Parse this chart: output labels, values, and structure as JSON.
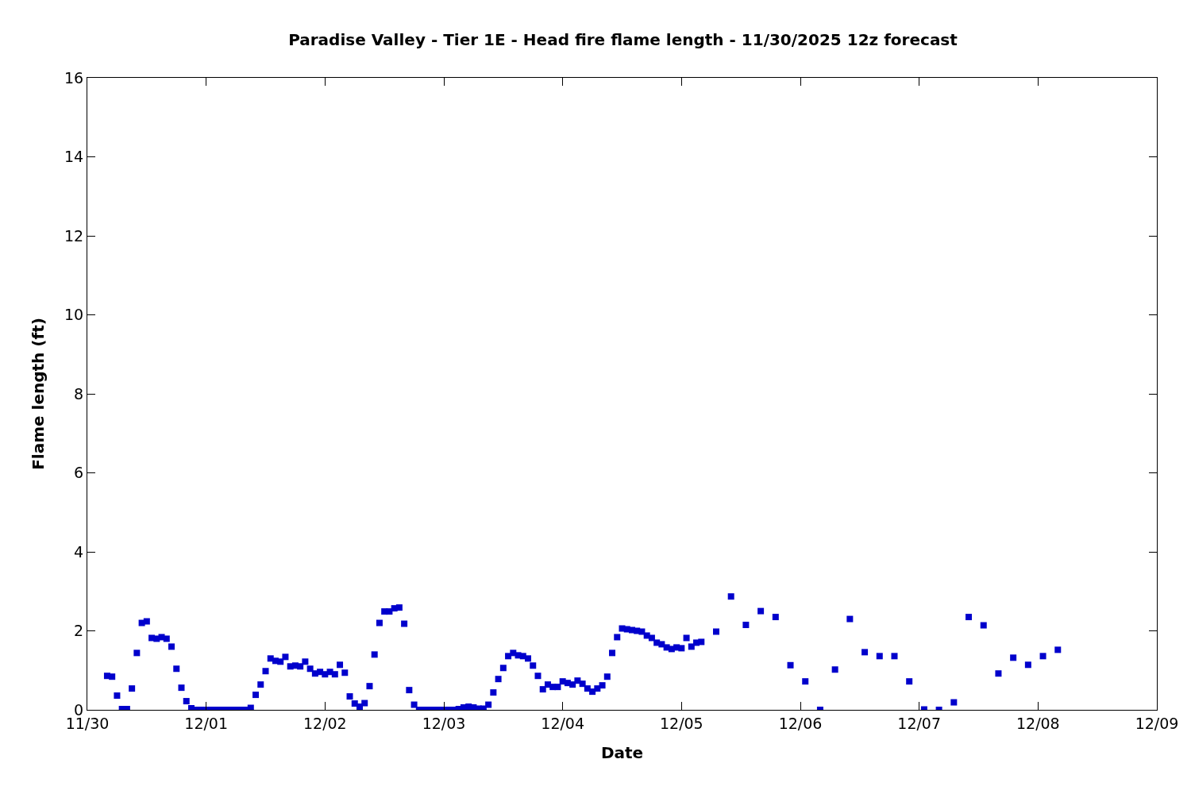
{
  "chart_data": {
    "type": "scatter",
    "title": "Paradise Valley - Tier 1E - Head fire flame length - 11/30/2025 12z forecast",
    "xlabel": "Date",
    "ylabel": "Flame length (ft)",
    "x": [
      "2025-11-30T04:00",
      "2025-11-30T05:00",
      "2025-11-30T06:00",
      "2025-11-30T07:00",
      "2025-11-30T08:00",
      "2025-11-30T09:00",
      "2025-11-30T10:00",
      "2025-11-30T11:00",
      "2025-11-30T12:00",
      "2025-11-30T13:00",
      "2025-11-30T14:00",
      "2025-11-30T15:00",
      "2025-11-30T16:00",
      "2025-11-30T17:00",
      "2025-11-30T18:00",
      "2025-11-30T19:00",
      "2025-11-30T20:00",
      "2025-11-30T21:00",
      "2025-11-30T22:00",
      "2025-11-30T23:00",
      "2025-12-01T00:00",
      "2025-12-01T01:00",
      "2025-12-01T02:00",
      "2025-12-01T03:00",
      "2025-12-01T04:00",
      "2025-12-01T05:00",
      "2025-12-01T06:00",
      "2025-12-01T07:00",
      "2025-12-01T08:00",
      "2025-12-01T09:00",
      "2025-12-01T10:00",
      "2025-12-01T11:00",
      "2025-12-01T12:00",
      "2025-12-01T13:00",
      "2025-12-01T14:00",
      "2025-12-01T15:00",
      "2025-12-01T16:00",
      "2025-12-01T17:00",
      "2025-12-01T18:00",
      "2025-12-01T19:00",
      "2025-12-01T20:00",
      "2025-12-01T21:00",
      "2025-12-01T22:00",
      "2025-12-01T23:00",
      "2025-12-02T00:00",
      "2025-12-02T01:00",
      "2025-12-02T02:00",
      "2025-12-02T03:00",
      "2025-12-02T04:00",
      "2025-12-02T05:00",
      "2025-12-02T06:00",
      "2025-12-02T07:00",
      "2025-12-02T08:00",
      "2025-12-02T09:00",
      "2025-12-02T10:00",
      "2025-12-02T11:00",
      "2025-12-02T12:00",
      "2025-12-02T13:00",
      "2025-12-02T14:00",
      "2025-12-02T15:00",
      "2025-12-02T16:00",
      "2025-12-02T17:00",
      "2025-12-02T18:00",
      "2025-12-02T19:00",
      "2025-12-02T20:00",
      "2025-12-02T21:00",
      "2025-12-02T22:00",
      "2025-12-02T23:00",
      "2025-12-03T00:00",
      "2025-12-03T01:00",
      "2025-12-03T02:00",
      "2025-12-03T03:00",
      "2025-12-03T04:00",
      "2025-12-03T05:00",
      "2025-12-03T06:00",
      "2025-12-03T07:00",
      "2025-12-03T08:00",
      "2025-12-03T09:00",
      "2025-12-03T10:00",
      "2025-12-03T11:00",
      "2025-12-03T12:00",
      "2025-12-03T13:00",
      "2025-12-03T14:00",
      "2025-12-03T15:00",
      "2025-12-03T16:00",
      "2025-12-03T17:00",
      "2025-12-03T18:00",
      "2025-12-03T19:00",
      "2025-12-03T20:00",
      "2025-12-03T21:00",
      "2025-12-03T22:00",
      "2025-12-03T23:00",
      "2025-12-04T00:00",
      "2025-12-04T01:00",
      "2025-12-04T02:00",
      "2025-12-04T03:00",
      "2025-12-04T04:00",
      "2025-12-04T05:00",
      "2025-12-04T06:00",
      "2025-12-04T07:00",
      "2025-12-04T08:00",
      "2025-12-04T09:00",
      "2025-12-04T10:00",
      "2025-12-04T11:00",
      "2025-12-04T12:00",
      "2025-12-04T13:00",
      "2025-12-04T14:00",
      "2025-12-04T15:00",
      "2025-12-04T16:00",
      "2025-12-04T17:00",
      "2025-12-04T18:00",
      "2025-12-04T19:00",
      "2025-12-04T20:00",
      "2025-12-04T21:00",
      "2025-12-04T22:00",
      "2025-12-04T23:00",
      "2025-12-05T00:00",
      "2025-12-05T01:00",
      "2025-12-05T02:00",
      "2025-12-05T03:00",
      "2025-12-05T04:00",
      "2025-12-05T07:00",
      "2025-12-05T10:00",
      "2025-12-05T13:00",
      "2025-12-05T16:00",
      "2025-12-05T19:00",
      "2025-12-05T22:00",
      "2025-12-06T01:00",
      "2025-12-06T04:00",
      "2025-12-06T07:00",
      "2025-12-06T10:00",
      "2025-12-06T13:00",
      "2025-12-06T16:00",
      "2025-12-06T19:00",
      "2025-12-06T22:00",
      "2025-12-07T01:00",
      "2025-12-07T04:00",
      "2025-12-07T07:00",
      "2025-12-07T10:00",
      "2025-12-07T13:00",
      "2025-12-07T16:00",
      "2025-12-07T19:00",
      "2025-12-07T22:00",
      "2025-12-08T01:00",
      "2025-12-08T04:00"
    ],
    "series": [
      {
        "color": "#0000cc",
        "values": [
          0.86,
          0.84,
          0.36,
          0.02,
          0.02,
          0.54,
          1.44,
          2.2,
          2.24,
          1.82,
          1.8,
          1.84,
          1.8,
          1.6,
          1.04,
          0.56,
          0.22,
          0.04,
          0,
          0,
          0,
          0,
          0,
          0,
          0,
          0,
          0,
          0,
          0,
          0.05,
          0.38,
          0.64,
          0.98,
          1.3,
          1.24,
          1.22,
          1.34,
          1.1,
          1.12,
          1.1,
          1.22,
          1.04,
          0.92,
          0.96,
          0.9,
          0.96,
          0.9,
          1.14,
          0.94,
          0.34,
          0.16,
          0.08,
          0.17,
          0.6,
          1.4,
          2.2,
          2.49,
          2.49,
          2.57,
          2.59,
          2.18,
          0.5,
          0.13,
          0,
          0,
          0,
          0,
          0,
          0,
          0,
          0,
          0.02,
          0.06,
          0.08,
          0.06,
          0.03,
          0.03,
          0.13,
          0.44,
          0.78,
          1.06,
          1.36,
          1.44,
          1.38,
          1.36,
          1.3,
          1.12,
          0.86,
          0.52,
          0.64,
          0.58,
          0.58,
          0.72,
          0.68,
          0.64,
          0.74,
          0.66,
          0.54,
          0.46,
          0.54,
          0.62,
          0.84,
          1.44,
          1.84,
          2.06,
          2.04,
          2.02,
          2.0,
          1.98,
          1.88,
          1.82,
          1.7,
          1.66,
          1.58,
          1.54,
          1.58,
          1.56,
          1.82,
          1.6,
          1.7,
          1.72,
          1.98,
          2.87,
          2.15,
          2.5,
          2.35,
          1.13,
          0.72,
          0,
          1.02,
          2.3,
          1.46,
          1.36,
          1.36,
          0.72,
          0.01,
          0,
          0.19,
          2.35,
          2.14,
          0.92,
          1.32,
          1.14,
          1.36,
          1.52
        ]
      }
    ],
    "xlim": [
      "2025-11-30",
      "2025-12-09"
    ],
    "xticks": [
      {
        "value": "2025-11-30",
        "label": "11/30"
      },
      {
        "value": "2025-12-01",
        "label": "12/01"
      },
      {
        "value": "2025-12-02",
        "label": "12/02"
      },
      {
        "value": "2025-12-03",
        "label": "12/03"
      },
      {
        "value": "2025-12-04",
        "label": "12/04"
      },
      {
        "value": "2025-12-05",
        "label": "12/05"
      },
      {
        "value": "2025-12-06",
        "label": "12/06"
      },
      {
        "value": "2025-12-07",
        "label": "12/07"
      },
      {
        "value": "2025-12-08",
        "label": "12/08"
      },
      {
        "value": "2025-12-09",
        "label": "12/09"
      }
    ],
    "ylim": [
      0,
      16
    ],
    "yticks": [
      0,
      2,
      4,
      6,
      8,
      10,
      12,
      14,
      16
    ],
    "marker": "square"
  }
}
